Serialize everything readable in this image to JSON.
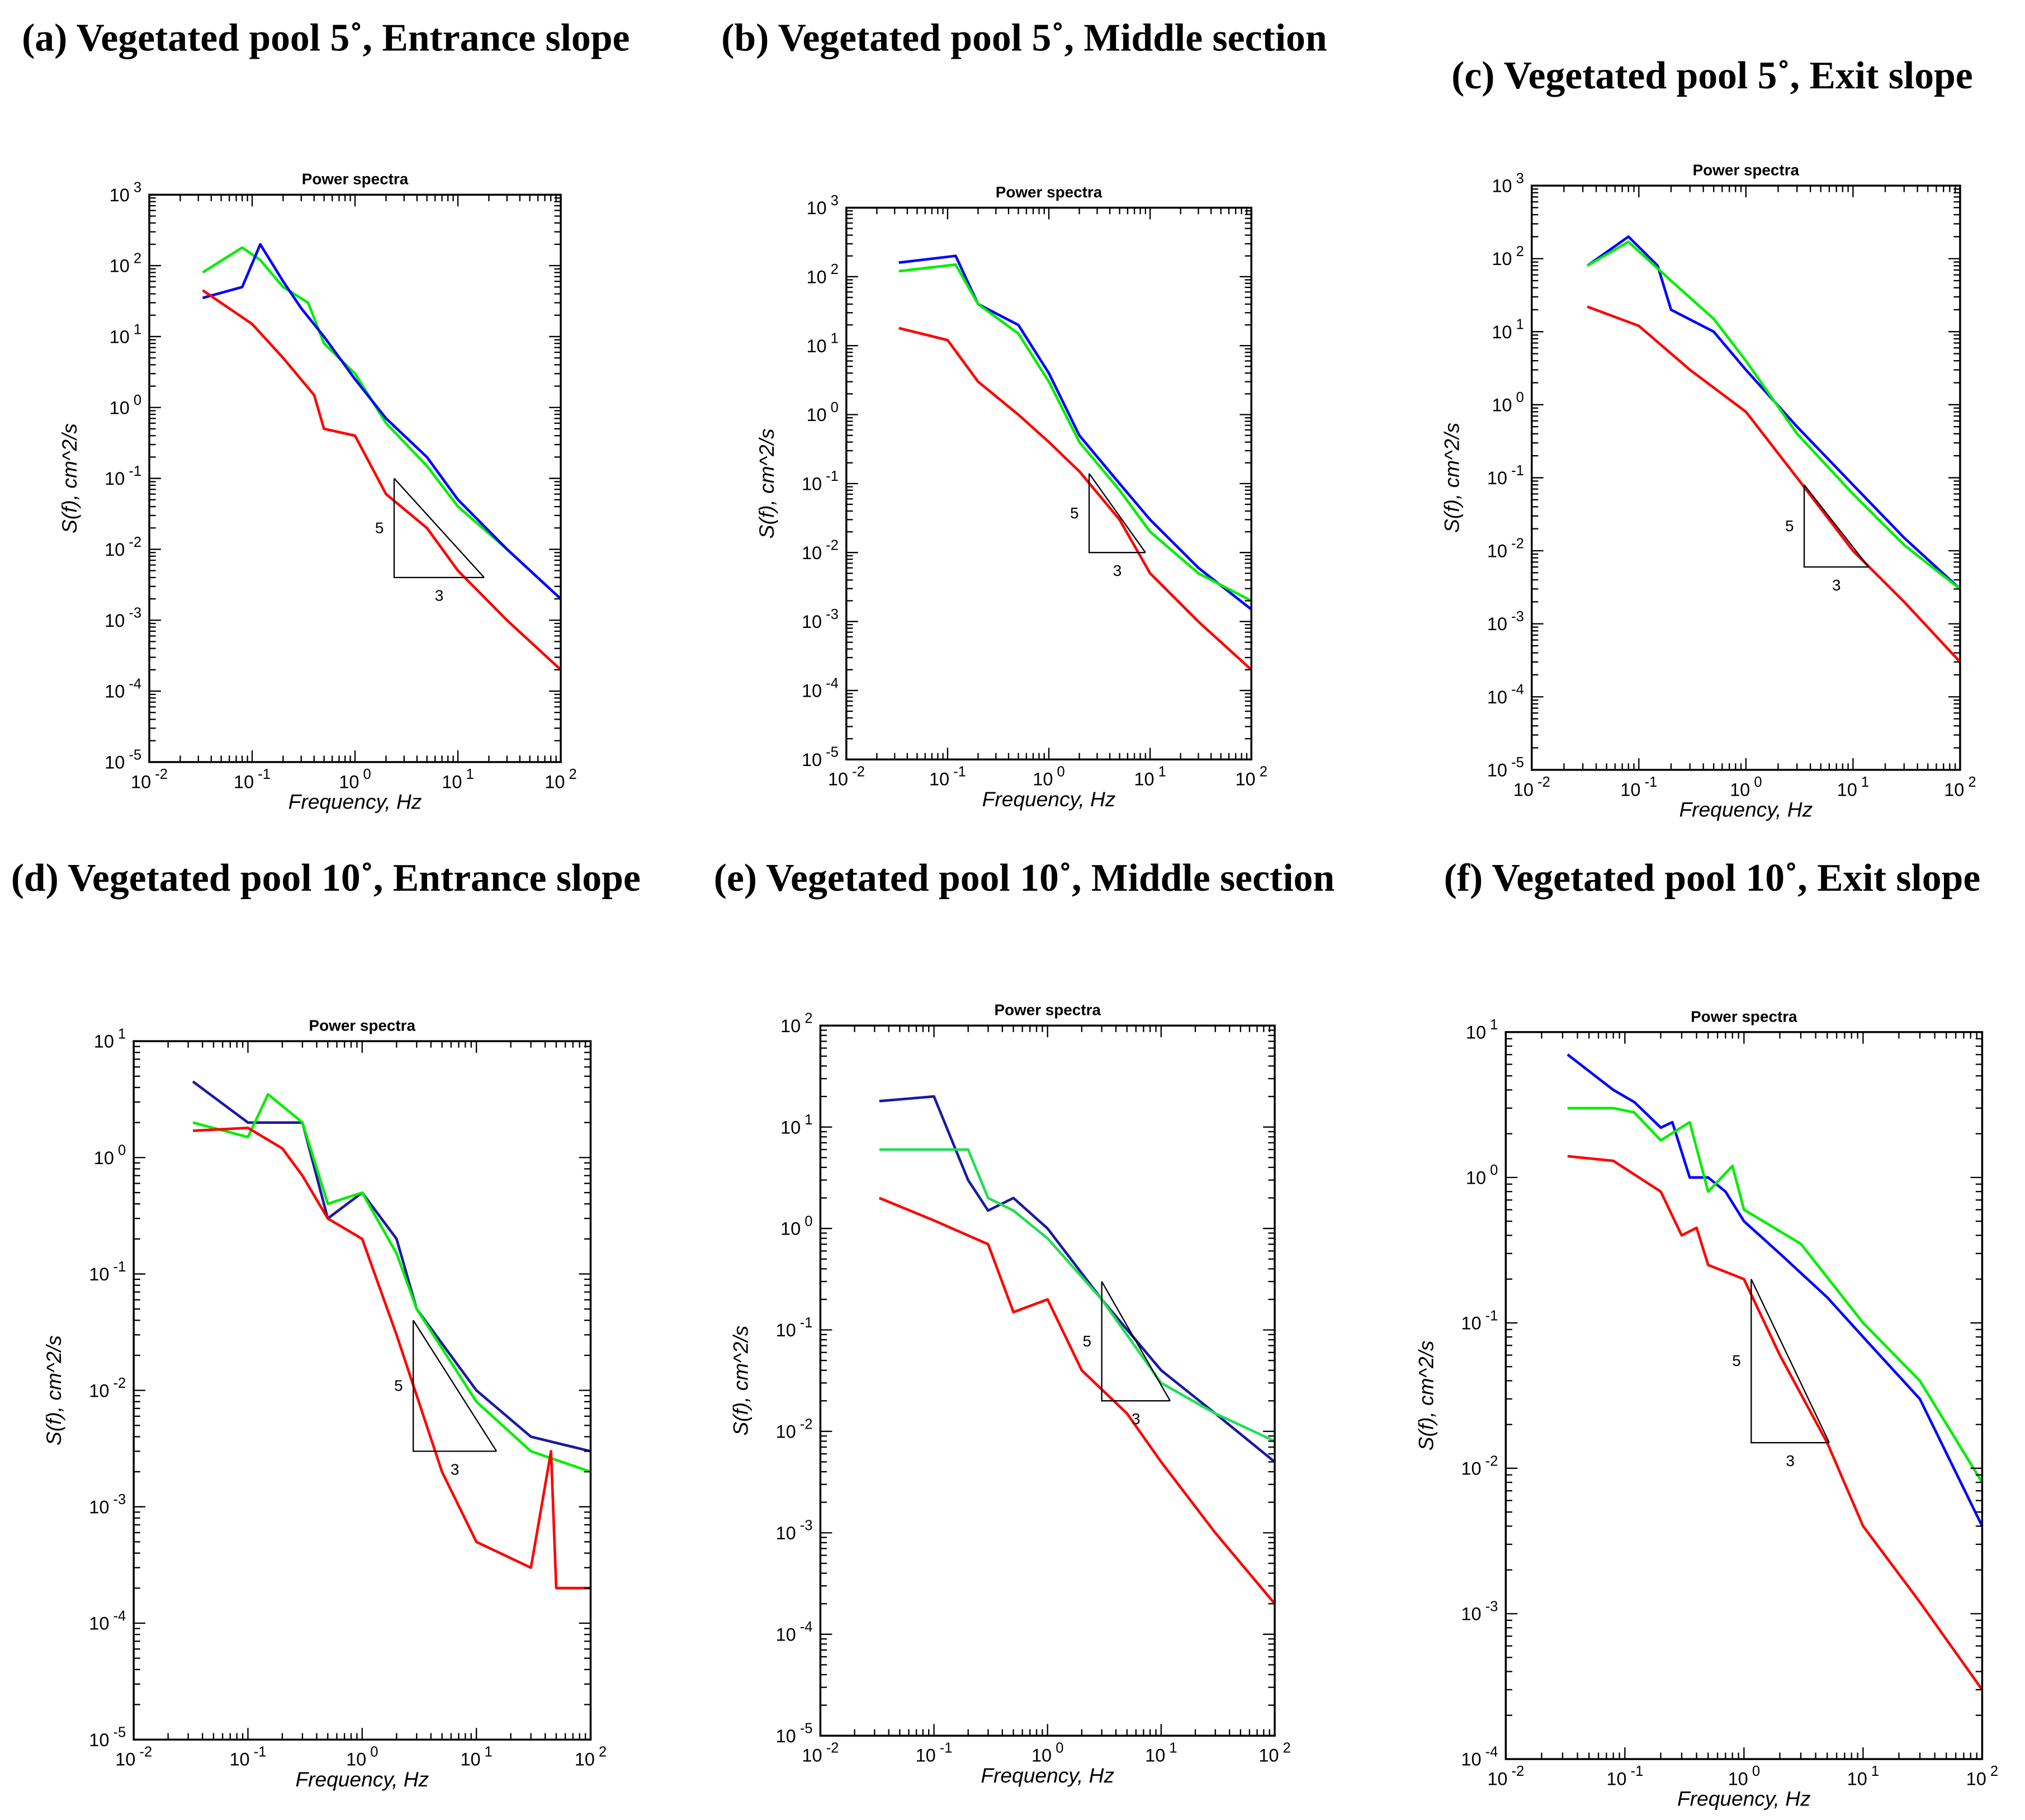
{
  "chart_data": [
    {
      "id": "a",
      "panel_title": "(a) Vegetated pool  5˚, Entrance slope",
      "type": "line",
      "title": "Power spectra",
      "xlabel": "Frequency, Hz",
      "ylabel": "S(f), cm^2/s",
      "xscale": "log",
      "yscale": "log",
      "xlim": [
        0.01,
        100
      ],
      "ylim": [
        1e-05,
        1000
      ],
      "grid": false,
      "series": [
        {
          "color": "#00ee00",
          "points": [
            [
              0.033,
              80
            ],
            [
              0.08,
              180
            ],
            [
              0.12,
              120
            ],
            [
              0.2,
              50
            ],
            [
              0.35,
              30
            ],
            [
              0.5,
              8
            ],
            [
              1,
              3
            ],
            [
              2,
              0.6
            ],
            [
              5,
              0.15
            ],
            [
              10,
              0.04
            ],
            [
              30,
              0.01
            ],
            [
              100,
              0.002
            ]
          ]
        },
        {
          "color": "#0000ff",
          "points": [
            [
              0.033,
              35
            ],
            [
              0.08,
              50
            ],
            [
              0.12,
              200
            ],
            [
              0.2,
              60
            ],
            [
              0.3,
              25
            ],
            [
              0.5,
              10
            ],
            [
              1,
              2.5
            ],
            [
              2,
              0.7
            ],
            [
              5,
              0.2
            ],
            [
              10,
              0.05
            ],
            [
              30,
              0.01
            ],
            [
              100,
              0.002
            ]
          ]
        },
        {
          "color": "#ff0000",
          "points": [
            [
              0.033,
              45
            ],
            [
              0.1,
              15
            ],
            [
              0.2,
              5
            ],
            [
              0.4,
              1.5
            ],
            [
              0.5,
              0.5
            ],
            [
              1,
              0.4
            ],
            [
              2,
              0.06
            ],
            [
              5,
              0.02
            ],
            [
              10,
              0.005
            ],
            [
              30,
              0.001
            ],
            [
              100,
              0.0002
            ]
          ]
        }
      ],
      "slope_triangle": {
        "top": [
          2.4,
          0.1
        ],
        "corner": [
          2.4,
          0.004
        ],
        "right": [
          18,
          0.004
        ],
        "vertical_label": "5",
        "horizontal_label": "3"
      }
    },
    {
      "id": "b",
      "panel_title": "(b) Vegetated pool  5˚, Middle section",
      "type": "line",
      "title": "Power spectra",
      "xlabel": "Frequency, Hz",
      "ylabel": "S(f), cm^2/s",
      "xscale": "log",
      "yscale": "log",
      "xlim": [
        0.01,
        100
      ],
      "ylim": [
        1e-05,
        1000
      ],
      "grid": false,
      "series": [
        {
          "color": "#0000ff",
          "points": [
            [
              0.033,
              160
            ],
            [
              0.12,
              200
            ],
            [
              0.2,
              40
            ],
            [
              0.5,
              20
            ],
            [
              1,
              4
            ],
            [
              2,
              0.5
            ],
            [
              5,
              0.1
            ],
            [
              10,
              0.03
            ],
            [
              30,
              0.006
            ],
            [
              100,
              0.0015
            ]
          ]
        },
        {
          "color": "#00ee00",
          "points": [
            [
              0.033,
              120
            ],
            [
              0.12,
              150
            ],
            [
              0.2,
              40
            ],
            [
              0.5,
              15
            ],
            [
              1,
              3
            ],
            [
              2,
              0.4
            ],
            [
              5,
              0.08
            ],
            [
              10,
              0.02
            ],
            [
              30,
              0.005
            ],
            [
              100,
              0.002
            ]
          ]
        },
        {
          "color": "#ff0000",
          "points": [
            [
              0.033,
              18
            ],
            [
              0.1,
              12
            ],
            [
              0.2,
              3
            ],
            [
              0.5,
              1
            ],
            [
              1,
              0.4
            ],
            [
              2,
              0.15
            ],
            [
              5,
              0.03
            ],
            [
              10,
              0.005
            ],
            [
              30,
              0.001
            ],
            [
              100,
              0.0002
            ]
          ]
        }
      ],
      "slope_triangle": {
        "top": [
          2.5,
          0.14
        ],
        "corner": [
          2.5,
          0.01
        ],
        "right": [
          9,
          0.01
        ],
        "vertical_label": "5",
        "horizontal_label": "3"
      }
    },
    {
      "id": "c",
      "panel_title": "(c) Vegetated pool  5˚, Exit slope",
      "type": "line",
      "title": "Power spectra",
      "xlabel": "Frequency, Hz",
      "ylabel": "S(f), cm^2/s",
      "xscale": "log",
      "yscale": "log",
      "xlim": [
        0.01,
        100
      ],
      "ylim": [
        1e-05,
        1000
      ],
      "grid": false,
      "series": [
        {
          "color": "#0000ff",
          "points": [
            [
              0.033,
              80
            ],
            [
              0.08,
              200
            ],
            [
              0.15,
              80
            ],
            [
              0.2,
              20
            ],
            [
              0.5,
              10
            ],
            [
              1,
              3
            ],
            [
              3,
              0.5
            ],
            [
              10,
              0.08
            ],
            [
              30,
              0.015
            ],
            [
              100,
              0.003
            ]
          ]
        },
        {
          "color": "#00ee00",
          "points": [
            [
              0.033,
              80
            ],
            [
              0.08,
              170
            ],
            [
              0.2,
              50
            ],
            [
              0.5,
              15
            ],
            [
              1,
              4
            ],
            [
              3,
              0.4
            ],
            [
              10,
              0.06
            ],
            [
              30,
              0.012
            ],
            [
              100,
              0.003
            ]
          ]
        },
        {
          "color": "#ff0000",
          "points": [
            [
              0.033,
              22
            ],
            [
              0.1,
              12
            ],
            [
              0.3,
              3
            ],
            [
              1,
              0.8
            ],
            [
              3,
              0.1
            ],
            [
              10,
              0.01
            ],
            [
              30,
              0.002
            ],
            [
              100,
              0.0003
            ]
          ]
        }
      ],
      "slope_triangle": {
        "top": [
          3.5,
          0.08
        ],
        "corner": [
          3.5,
          0.006
        ],
        "right": [
          14,
          0.006
        ],
        "vertical_label": "5",
        "horizontal_label": "3"
      }
    },
    {
      "id": "d",
      "panel_title": "(d) Vegetated pool  10˚, Entrance slope",
      "type": "line",
      "title": "Power spectra",
      "xlabel": "Frequency, Hz",
      "ylabel": "S(f), cm^2/s",
      "xscale": "log",
      "yscale": "log",
      "xlim": [
        0.01,
        100
      ],
      "ylim": [
        1e-05,
        10
      ],
      "grid": false,
      "series": [
        {
          "color": "#1a1aa0",
          "points": [
            [
              0.033,
              4.5
            ],
            [
              0.1,
              2
            ],
            [
              0.3,
              2
            ],
            [
              0.5,
              0.3
            ],
            [
              1,
              0.5
            ],
            [
              2,
              0.2
            ],
            [
              3,
              0.05
            ],
            [
              10,
              0.01
            ],
            [
              30,
              0.004
            ],
            [
              100,
              0.003
            ]
          ]
        },
        {
          "color": "#00ee00",
          "points": [
            [
              0.033,
              2
            ],
            [
              0.1,
              1.5
            ],
            [
              0.15,
              3.5
            ],
            [
              0.3,
              2
            ],
            [
              0.5,
              0.4
            ],
            [
              1,
              0.5
            ],
            [
              2,
              0.15
            ],
            [
              3,
              0.05
            ],
            [
              10,
              0.008
            ],
            [
              30,
              0.003
            ],
            [
              100,
              0.002
            ]
          ]
        },
        {
          "color": "#ff0000",
          "points": [
            [
              0.033,
              1.7
            ],
            [
              0.1,
              1.8
            ],
            [
              0.2,
              1.2
            ],
            [
              0.3,
              0.7
            ],
            [
              0.5,
              0.3
            ],
            [
              1,
              0.2
            ],
            [
              2,
              0.03
            ],
            [
              5,
              0.002
            ],
            [
              10,
              0.0005
            ],
            [
              30,
              0.0003
            ],
            [
              45,
              0.003
            ],
            [
              50,
              0.0002
            ],
            [
              100,
              0.0002
            ]
          ]
        }
      ],
      "slope_triangle": {
        "top": [
          2.8,
          0.04
        ],
        "corner": [
          2.8,
          0.003
        ],
        "right": [
          15,
          0.003
        ],
        "vertical_label": "5",
        "horizontal_label": "3"
      }
    },
    {
      "id": "e",
      "panel_title": "(e) Vegetated pool  10˚, Middle section",
      "type": "line",
      "title": "Power spectra",
      "xlabel": "Frequency, Hz",
      "ylabel": "S(f), cm^2/s",
      "xscale": "log",
      "yscale": "log",
      "xlim": [
        0.01,
        100
      ],
      "ylim": [
        1e-05,
        100
      ],
      "grid": false,
      "series": [
        {
          "color": "#1a1aa0",
          "points": [
            [
              0.033,
              18
            ],
            [
              0.1,
              20
            ],
            [
              0.2,
              3
            ],
            [
              0.3,
              1.5
            ],
            [
              0.5,
              2
            ],
            [
              1,
              1
            ],
            [
              3,
              0.2
            ],
            [
              10,
              0.04
            ],
            [
              30,
              0.015
            ],
            [
              100,
              0.005
            ]
          ]
        },
        {
          "color": "#22dd55",
          "points": [
            [
              0.033,
              6
            ],
            [
              0.1,
              6
            ],
            [
              0.2,
              6
            ],
            [
              0.3,
              2
            ],
            [
              0.5,
              1.5
            ],
            [
              1,
              0.8
            ],
            [
              3,
              0.2
            ],
            [
              10,
              0.03
            ],
            [
              30,
              0.015
            ],
            [
              100,
              0.008
            ]
          ]
        },
        {
          "color": "#ff0000",
          "points": [
            [
              0.033,
              2
            ],
            [
              0.1,
              1.2
            ],
            [
              0.3,
              0.7
            ],
            [
              0.5,
              0.15
            ],
            [
              1,
              0.2
            ],
            [
              2,
              0.04
            ],
            [
              5,
              0.015
            ],
            [
              10,
              0.005
            ],
            [
              30,
              0.001
            ],
            [
              100,
              0.0002
            ]
          ]
        }
      ],
      "slope_triangle": {
        "top": [
          3,
          0.3
        ],
        "corner": [
          3,
          0.02
        ],
        "right": [
          12,
          0.02
        ],
        "vertical_label": "5",
        "horizontal_label": "3"
      }
    },
    {
      "id": "f",
      "panel_title": "(f) Vegetated pool  10˚, Exit slope",
      "type": "line",
      "title": "Power spectra",
      "xlabel": "Frequency, Hz",
      "ylabel": "S(f), cm^2/s",
      "xscale": "log",
      "yscale": "log",
      "xlim": [
        0.01,
        100
      ],
      "ylim": [
        0.0001,
        10
      ],
      "grid": false,
      "series": [
        {
          "color": "#0000ff",
          "points": [
            [
              0.033,
              7
            ],
            [
              0.08,
              4
            ],
            [
              0.12,
              3.3
            ],
            [
              0.2,
              2.2
            ],
            [
              0.25,
              2.4
            ],
            [
              0.35,
              1
            ],
            [
              0.5,
              1
            ],
            [
              0.7,
              0.8
            ],
            [
              1,
              0.5
            ],
            [
              2,
              0.3
            ],
            [
              5,
              0.15
            ],
            [
              10,
              0.08
            ],
            [
              30,
              0.03
            ],
            [
              100,
              0.004
            ]
          ]
        },
        {
          "color": "#00ee00",
          "points": [
            [
              0.033,
              3
            ],
            [
              0.08,
              3
            ],
            [
              0.12,
              2.8
            ],
            [
              0.2,
              1.8
            ],
            [
              0.35,
              2.4
            ],
            [
              0.5,
              0.8
            ],
            [
              0.8,
              1.2
            ],
            [
              1,
              0.6
            ],
            [
              3,
              0.35
            ],
            [
              10,
              0.1
            ],
            [
              30,
              0.04
            ],
            [
              100,
              0.008
            ]
          ]
        },
        {
          "color": "#ff0000",
          "points": [
            [
              0.033,
              1.4
            ],
            [
              0.08,
              1.3
            ],
            [
              0.2,
              0.8
            ],
            [
              0.3,
              0.4
            ],
            [
              0.4,
              0.45
            ],
            [
              0.5,
              0.25
            ],
            [
              1,
              0.2
            ],
            [
              2,
              0.06
            ],
            [
              5,
              0.015
            ],
            [
              10,
              0.004
            ],
            [
              30,
              0.0012
            ],
            [
              100,
              0.0003
            ]
          ]
        }
      ],
      "slope_triangle": {
        "top": [
          1.15,
          0.2
        ],
        "corner": [
          1.15,
          0.015
        ],
        "right": [
          5.2,
          0.015
        ],
        "vertical_label": "5",
        "horizontal_label": "3"
      }
    }
  ]
}
